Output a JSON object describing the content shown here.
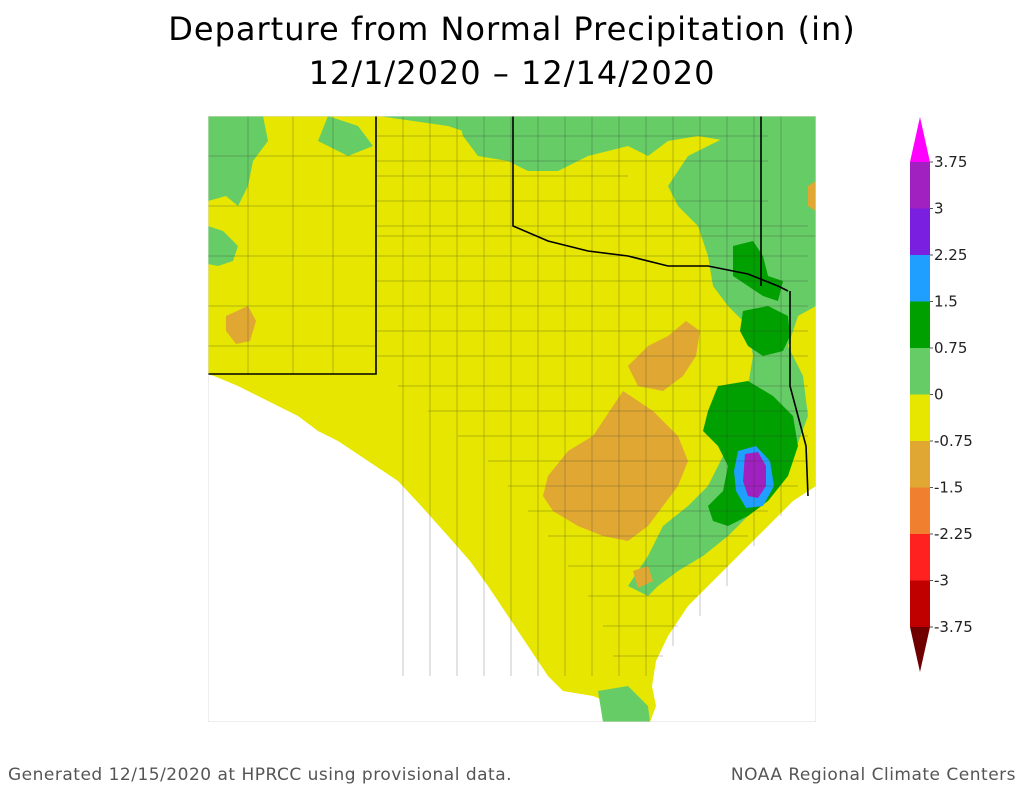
{
  "title": "Departure from Normal Precipitation (in)",
  "subtitle": "12/1/2020 – 12/14/2020",
  "footer": {
    "left": "Generated 12/15/2020 at HPRCC using provisional data.",
    "right": "NOAA Regional Climate Centers"
  },
  "legend": {
    "labels": [
      "3.75",
      "3",
      "2.25",
      "1.5",
      "0.75",
      "0",
      "-0.75",
      "-1.5",
      "-2.25",
      "-3",
      "-3.75"
    ],
    "colors": [
      "#ff00ff",
      "#a020c0",
      "#7a1ee0",
      "#1f9fff",
      "#00a000",
      "#66cc66",
      "#e6e600",
      "#e0a832",
      "#f08030",
      "#ff2020",
      "#c00000",
      "#700000"
    ]
  },
  "map": {
    "region": "Texas",
    "classes": {
      "above_0_75": "#66cc66",
      "above_1_5": "#00a000",
      "above_2_25": "#1f9fff",
      "above_3": "#a020c0",
      "near_normal": "#e6e600",
      "below_0_75": "#e0a832"
    }
  }
}
